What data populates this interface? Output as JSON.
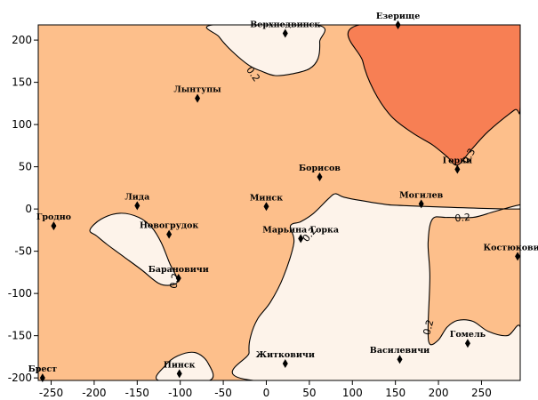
{
  "chart_data": {
    "type": "contour",
    "title": "",
    "xlabel": "",
    "ylabel": "",
    "xlim": [
      -265,
      295
    ],
    "ylim": [
      -203,
      218
    ],
    "x_ticks": [
      -250,
      -200,
      -150,
      -100,
      -50,
      0,
      50,
      100,
      150,
      200,
      250
    ],
    "y_ticks": [
      -200,
      -150,
      -100,
      -50,
      0,
      50,
      100,
      150,
      200
    ],
    "levels": [
      0.2,
      0.3
    ],
    "level_labels": [
      "0.2",
      "0.3"
    ],
    "colors": {
      "below_0_2": "#fdf3ea",
      "between_0_2_0_3": "#fdbf8b",
      "above_0_3": "#f77f54",
      "contour_line": "#000000"
    },
    "grid": false,
    "points": [
      {
        "name": "Верхнедвинск",
        "x": 22,
        "y": 208
      },
      {
        "name": "Езерище",
        "x": 153,
        "y": 218
      },
      {
        "name": "Лынтупы",
        "x": -80,
        "y": 131
      },
      {
        "name": "Горки",
        "x": 222,
        "y": 47
      },
      {
        "name": "Борисов",
        "x": 62,
        "y": 38
      },
      {
        "name": "Лида",
        "x": -150,
        "y": 4
      },
      {
        "name": "Минск",
        "x": 0,
        "y": 3
      },
      {
        "name": "Могилев",
        "x": 180,
        "y": 6
      },
      {
        "name": "Гродно",
        "x": -247,
        "y": -20
      },
      {
        "name": "Новогрудок",
        "x": -113,
        "y": -30
      },
      {
        "name": "Марьина Горка",
        "x": 40,
        "y": -35
      },
      {
        "name": "Костюковичи",
        "x": 292,
        "y": -56
      },
      {
        "name": "Барановичи",
        "x": -102,
        "y": -82
      },
      {
        "name": "Гомель",
        "x": 234,
        "y": -159
      },
      {
        "name": "Василевичи",
        "x": 155,
        "y": -178
      },
      {
        "name": "Житковичи",
        "x": 22,
        "y": -183
      },
      {
        "name": "Пинск",
        "x": -101,
        "y": -195
      },
      {
        "name": "Брест",
        "x": -260,
        "y": -200
      }
    ],
    "regions": [
      {
        "level": "below_0_2",
        "label": "0.2",
        "boundary": [
          [
            -62,
            218
          ],
          [
            -55,
            204
          ],
          [
            -40,
            187
          ],
          [
            -20,
            170
          ],
          [
            -5,
            163
          ],
          [
            10,
            158
          ],
          [
            30,
            160
          ],
          [
            50,
            166
          ],
          [
            60,
            178
          ],
          [
            62,
            198
          ],
          [
            58,
            218
          ]
        ]
      },
      {
        "level": "above_0_3",
        "label": "0.3",
        "boundary": [
          [
            108,
            218
          ],
          [
            112,
            175
          ],
          [
            125,
            140
          ],
          [
            145,
            110
          ],
          [
            170,
            90
          ],
          [
            193,
            76
          ],
          [
            210,
            62
          ],
          [
            222,
            52
          ],
          [
            238,
            70
          ],
          [
            258,
            92
          ],
          [
            288,
            117
          ],
          [
            295,
            120
          ],
          [
            295,
            218
          ]
        ]
      },
      {
        "level": "below_0_2",
        "label": "0.2",
        "boundary": [
          [
            -205,
            -25
          ],
          [
            -192,
            -12
          ],
          [
            -170,
            -5
          ],
          [
            -148,
            -10
          ],
          [
            -133,
            -22
          ],
          [
            -122,
            -40
          ],
          [
            -112,
            -65
          ],
          [
            -103,
            -84
          ],
          [
            -110,
            -90
          ],
          [
            -125,
            -88
          ],
          [
            -145,
            -72
          ],
          [
            -165,
            -57
          ],
          [
            -185,
            -42
          ],
          [
            -197,
            -32
          ]
        ]
      },
      {
        "level": "below_0_2",
        "label": "0.2",
        "boundary": [
          [
            28,
            -20
          ],
          [
            32,
            -40
          ],
          [
            20,
            -80
          ],
          [
            5,
            -110
          ],
          [
            -10,
            -130
          ],
          [
            -18,
            -150
          ],
          [
            -20,
            -170
          ],
          [
            -15,
            -203
          ],
          [
            295,
            -203
          ],
          [
            295,
            -140
          ],
          [
            280,
            -150
          ],
          [
            258,
            -145
          ],
          [
            240,
            -133
          ],
          [
            222,
            -132
          ],
          [
            210,
            -140
          ],
          [
            200,
            -155
          ],
          [
            190,
            -160
          ],
          [
            188,
            -140
          ],
          [
            190,
            -80
          ],
          [
            188,
            -40
          ],
          [
            193,
            -12
          ],
          [
            210,
            -10
          ],
          [
            240,
            -10
          ],
          [
            265,
            -3
          ],
          [
            295,
            5
          ],
          [
            295,
            0
          ],
          [
            160,
            4
          ],
          [
            135,
            6
          ],
          [
            110,
            10
          ],
          [
            90,
            14
          ],
          [
            80,
            18
          ],
          [
            72,
            12
          ],
          [
            55,
            -5
          ],
          [
            40,
            -15
          ]
        ]
      },
      {
        "level": "below_0_2",
        "label": "",
        "boundary": [
          [
            -125,
            -203
          ],
          [
            -118,
            -186
          ],
          [
            -103,
            -174
          ],
          [
            -83,
            -170
          ],
          [
            -68,
            -182
          ],
          [
            -66,
            -203
          ]
        ]
      }
    ]
  }
}
